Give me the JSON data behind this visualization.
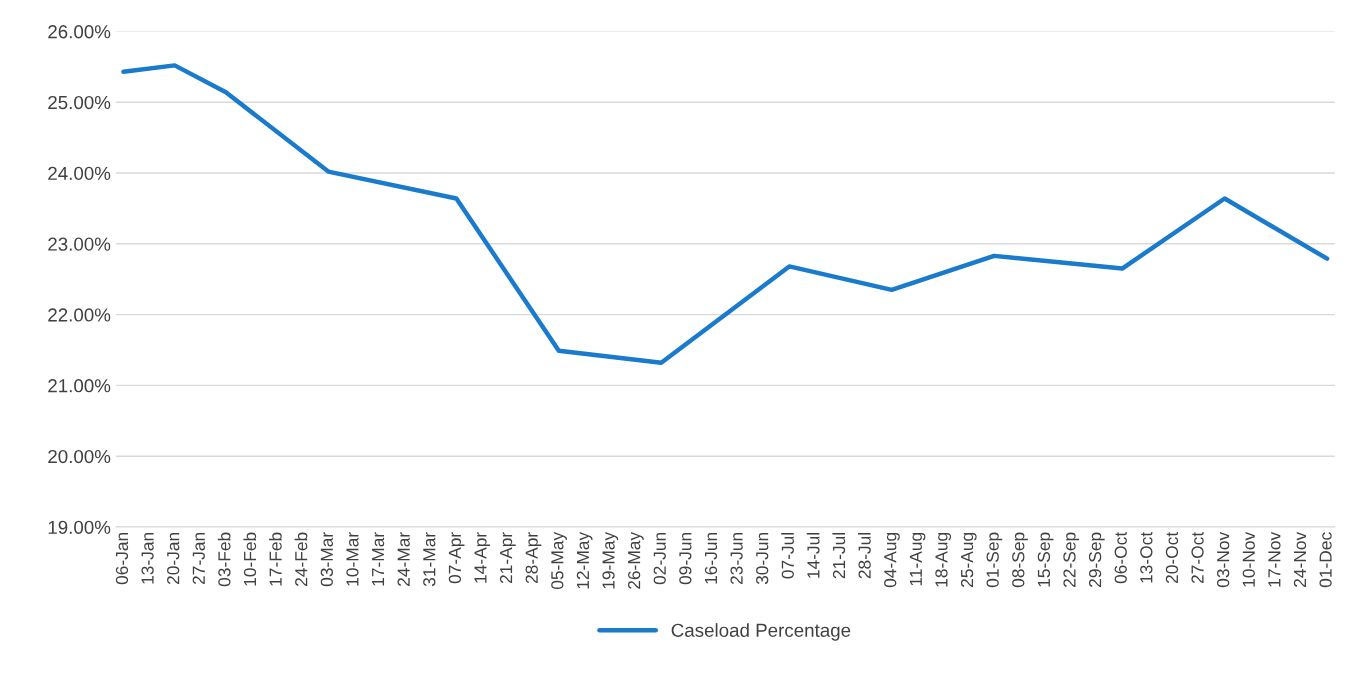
{
  "chart_data": {
    "type": "line",
    "categories": [
      "06-Jan",
      "13-Jan",
      "20-Jan",
      "27-Jan",
      "03-Feb",
      "10-Feb",
      "17-Feb",
      "24-Feb",
      "03-Mar",
      "10-Mar",
      "17-Mar",
      "24-Mar",
      "31-Mar",
      "07-Apr",
      "14-Apr",
      "21-Apr",
      "28-Apr",
      "05-May",
      "12-May",
      "19-May",
      "26-May",
      "02-Jun",
      "09-Jun",
      "16-Jun",
      "23-Jun",
      "30-Jun",
      "07-Jul",
      "14-Jul",
      "21-Jul",
      "28-Jul",
      "04-Aug",
      "11-Aug",
      "18-Aug",
      "25-Aug",
      "01-Sep",
      "08-Sep",
      "15-Sep",
      "22-Sep",
      "29-Sep",
      "06-Oct",
      "13-Oct",
      "20-Oct",
      "27-Oct",
      "03-Nov",
      "10-Nov",
      "17-Nov",
      "24-Nov",
      "01-Dec"
    ],
    "series": [
      {
        "name": "Caseload Percentage",
        "color": "#1a7acb",
        "values": [
          25.43,
          null,
          25.52,
          null,
          25.14,
          null,
          null,
          null,
          24.02,
          null,
          null,
          null,
          null,
          23.64,
          null,
          null,
          null,
          21.49,
          null,
          null,
          null,
          21.32,
          null,
          null,
          null,
          null,
          22.68,
          null,
          null,
          null,
          22.35,
          null,
          null,
          null,
          22.83,
          null,
          null,
          null,
          null,
          22.65,
          null,
          null,
          null,
          23.64,
          null,
          null,
          null,
          22.79
        ]
      }
    ],
    "ylim": [
      19,
      26
    ],
    "yticks": [
      {
        "value": 19,
        "label": "19.00%"
      },
      {
        "value": 20,
        "label": "20.00%"
      },
      {
        "value": 21,
        "label": "21.00%"
      },
      {
        "value": 22,
        "label": "22.00%"
      },
      {
        "value": 23,
        "label": "23.00%"
      },
      {
        "value": 24,
        "label": "24.00%"
      },
      {
        "value": 25,
        "label": "25.00%"
      },
      {
        "value": 26,
        "label": "26.00%"
      }
    ],
    "grid": "y",
    "legend": "bottom",
    "marker": "none",
    "line_style": "solid"
  }
}
